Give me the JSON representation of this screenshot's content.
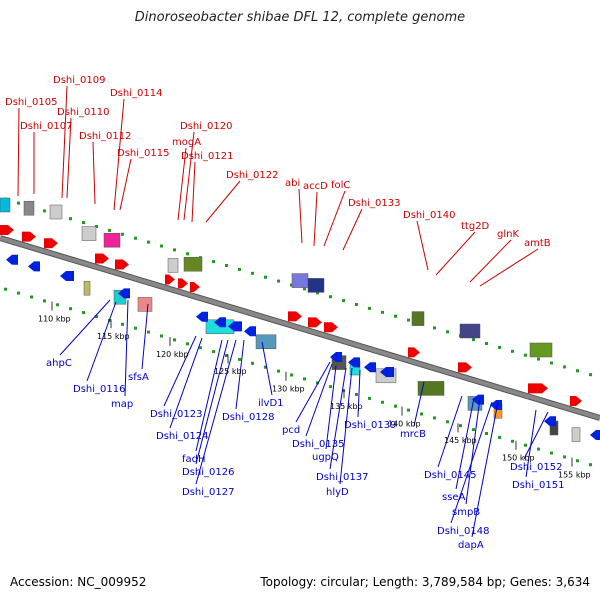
{
  "title": "Dinoroseobacter shibae DFL 12, complete genome",
  "footer": {
    "accession": "Accession: NC_009952",
    "summary": "Topology: circular; Length: 3,789,584 bp; Genes: 3,634"
  },
  "colors": {
    "forward_label": "#cc0000",
    "reverse_label": "#0000cc",
    "forward_gene": "#ee0000",
    "reverse_gene": "#0022dd",
    "backbone": "#888888",
    "tick": "#229922"
  },
  "scale_ticks": [
    "110 kbp",
    "115 kbp",
    "120 kbp",
    "125 kbp",
    "130 kbp",
    "135 kbp",
    "140 kbp",
    "145 kbp",
    "150 kbp",
    "155 kbp"
  ],
  "forward_genes": [
    "Dshi_0105",
    "Dshi_0109",
    "Dshi_0110",
    "Dshi_0107",
    "Dshi_0114",
    "Dshi_0112",
    "Dshi_0115",
    "Dshi_0120",
    "mogA",
    "Dshi_0121",
    "Dshi_0122",
    "abi",
    "accD",
    "folC",
    "Dshi_0133",
    "Dshi_0140",
    "ttg2D",
    "glnK",
    "amtB"
  ],
  "reverse_genes": [
    "ahpC",
    "Dshi_0116",
    "map",
    "sfsA",
    "Dshi_0123",
    "Dshi_0124",
    "fadH",
    "Dshi_0126",
    "Dshi_0127",
    "Dshi_0128",
    "ilvD1",
    "pcd",
    "Dshi_0135",
    "ugpQ",
    "Dshi_0137",
    "hlyD",
    "Dshi_0139",
    "mrcB",
    "Dshi_0145",
    "sseA",
    "smpB",
    "Dshi_0148",
    "dapA",
    "Dshi_0152",
    "Dshi_0151"
  ]
}
